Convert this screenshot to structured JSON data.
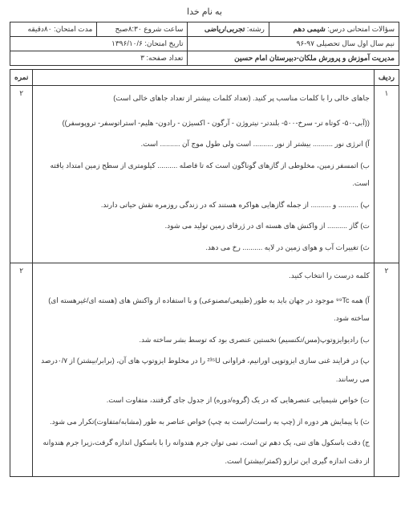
{
  "header": {
    "bismillah": "به نام خدا",
    "row1": {
      "c1_label": "سؤالات امتحانی درس:",
      "c1_value": "شیمی دهم",
      "c2_label": "رشته:",
      "c2_value": "تجربی/ریاضی",
      "c3_label": "ساعت شروع",
      "c3_value": "۸:۳۰صبح",
      "c4_label": "مدت امتحان:",
      "c4_value": "۸۰دقیقه"
    },
    "row2": {
      "c1": "نیم سال اول سال تحصیلی ۹۷-۹۶",
      "c2_label": "تاریخ امتحان:",
      "c2_value": "۱۳۹۶/۱۰/۶"
    },
    "row3": {
      "c1": "مدیریت آموزش و پرورش ملکان-دبیرستان امام حسین",
      "c2_label": "تعداد صفحه:",
      "c2_value": "۳"
    }
  },
  "columns": {
    "radif": "ردیف",
    "nomre": "نمره"
  },
  "q1": {
    "num": "۱",
    "score": "۲",
    "title": "جاهای خالی را با کلمات مناسب پر کنید. (تعداد کلمات بیشتر از تعداد جاهای خالی است)",
    "options": "((آبی-۵۰- کوتاه تر- سرخ-۵۰۰- بلندتر- نیتروژن - آرگون - اکسیژن - رادون- هلیم- استراتوسفر- تروپوسفر))",
    "a": "آ) انرژی نور .......... بیشتر از نور .......... است ولی طول موج آن .......... است.",
    "b": "ب) اتمسفر زمین، مخلوطی از گازهای گوناگون است که تا فاصله .......... کیلومتری از سطح زمین امتداد یافته است.",
    "p": "پ) .......... و .......... از جمله گازهایی هواکره هستند که در زندگی روزمره نقش حیاتی دارند.",
    "t": "ت) گاز .......... از واکنش های هسته ای در ژرفای زمین تولید می شود.",
    "th": "ث) تغییرات آب و هوای زمین در لایه .......... رخ می دهد."
  },
  "q2": {
    "num": "۲",
    "score": "۲",
    "title": "کلمه درست را انتخاب کنید.",
    "a_pre": "آ) همه ",
    "a_iso": "⁹⁹Tc",
    "a_post": " موجود در جهان باید به طور (طبیعی/مصنوعی) و با استفاده از واکنش های (هسته ای/غیرهسته ای) ساخته شود.",
    "b": "ب) رادیوایزوتوپ(مس/تکنسیم) نخستین عنصری بود که توسط بشر ساخته شد.",
    "p_pre": "پ) در فرایند غنی سازی ایزوتوپی اورانیم، فراوانی ",
    "p_iso": "²³⁵U",
    "p_post": " را در مخلوط ایزوتوپ های آن، (برابر/بیشتر) از ۰/۷درصد می رسانند.",
    "t": "ت) خواص شیمیایی عنصرهایی که در یک (گروه/دوره) از جدول جای گرفتند، متفاوت است.",
    "th": "ث) با پیمایش هر دوره از (چپ به راست/راست به چپ) خواص عناصر به طور (مشابه/متفاوت)تکرار می شود.",
    "j": "ج) دقت باسکول های تنی، یک دهم تن است، نمی توان جرم هندوانه را با باسکول اندازه گرفت،زیرا جرم هندوانه از دقت اندازه گیری این ترازو (کمتر/بیشتر) است."
  }
}
